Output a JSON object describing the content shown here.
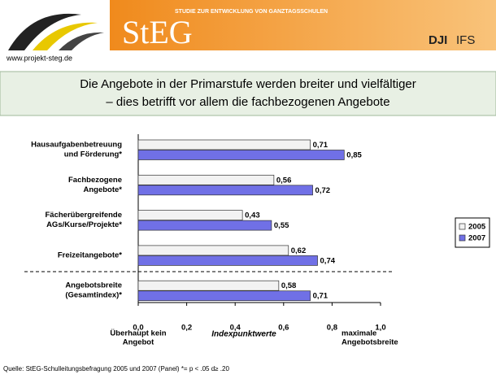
{
  "header": {
    "url": "www.projekt-steg.de",
    "subtitle": "STUDIE ZUR ENTWICKLUNG VON GANZTAGSSCHULEN",
    "logo": "StEG",
    "partner1": "DJI",
    "partner2": "IFS"
  },
  "chart_data": {
    "type": "hbar",
    "title": [
      "Die Angebote in der Primarstufe werden breiter und vielfältiger",
      "– dies betrifft vor allem die fachbezogenen Angebote"
    ],
    "categories": [
      [
        "Hausaufgabenbetreuung",
        "und Förderung*"
      ],
      [
        "Fachbezogene",
        "Angebote*"
      ],
      [
        "Fächerübergreifende",
        "AGs/Kurse/Projekte*"
      ],
      [
        "Freizeitangebote*"
      ],
      [
        "Angebotsbreite",
        "(Gesamtindex)*"
      ]
    ],
    "series": [
      {
        "name": "2005",
        "color": "#f2f2f2",
        "values": [
          0.71,
          0.56,
          0.43,
          0.62,
          0.58
        ],
        "value_labels": [
          "0,71",
          "0,56",
          "0,43",
          "0,62",
          "0,58"
        ]
      },
      {
        "name": "2007",
        "color": "#7070e6",
        "values": [
          0.85,
          0.72,
          0.55,
          0.74,
          0.71
        ],
        "value_labels": [
          "0,85",
          "0,72",
          "0,55",
          "0,74",
          "0,71"
        ]
      }
    ],
    "xlim": [
      0,
      1
    ],
    "xticks": [
      {
        "value": 0,
        "label": "0,0"
      },
      {
        "value": 0.2,
        "label": "0,2"
      },
      {
        "value": 0.4,
        "label": "0,4"
      },
      {
        "value": 0.6,
        "label": "0,6"
      },
      {
        "value": 0.8,
        "label": "0,8"
      },
      {
        "value": 1,
        "label": "1,0"
      }
    ],
    "xlabel": "Indexpunktwerte",
    "xlabel_left": [
      "Überhaupt kein",
      "Angebot"
    ],
    "xlabel_right": [
      "maximale",
      "Angebotsbreite"
    ],
    "legend": "right"
  },
  "footer": "Quelle: StEG-Schulleitungsbefragung 2005 und 2007 (Panel)  *= p < .05  d≥ .20"
}
